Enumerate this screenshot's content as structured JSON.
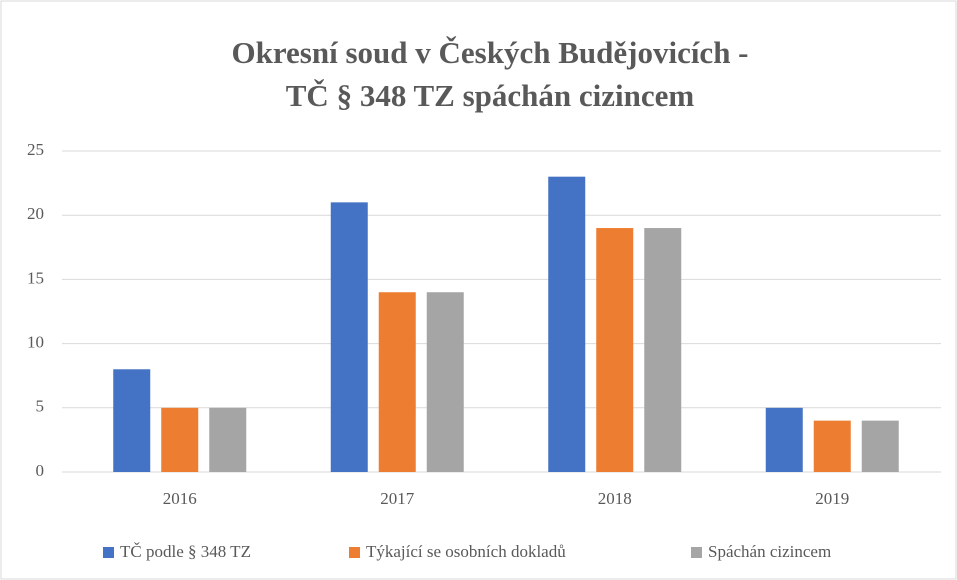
{
  "chart_data": {
    "type": "bar",
    "title": [
      "Okresní soud v Českých Budějovicích -",
      "TČ § 348 TZ spáchán cizincem"
    ],
    "categories": [
      "2016",
      "2017",
      "2018",
      "2019"
    ],
    "series": [
      {
        "name": "TČ podle § 348 TZ",
        "color": "#4472c4",
        "values": [
          8,
          21,
          23,
          5
        ]
      },
      {
        "name": "Týkající se osobních dokladů",
        "color": "#ed7d31",
        "values": [
          5,
          14,
          19,
          4
        ]
      },
      {
        "name": "Spáchán cizincem",
        "color": "#a5a5a5",
        "values": [
          5,
          14,
          19,
          4
        ]
      }
    ],
    "ylim": [
      0,
      25
    ],
    "yticks": [
      0,
      5,
      10,
      15,
      20,
      25
    ],
    "grid": true,
    "legend": "bottom"
  }
}
